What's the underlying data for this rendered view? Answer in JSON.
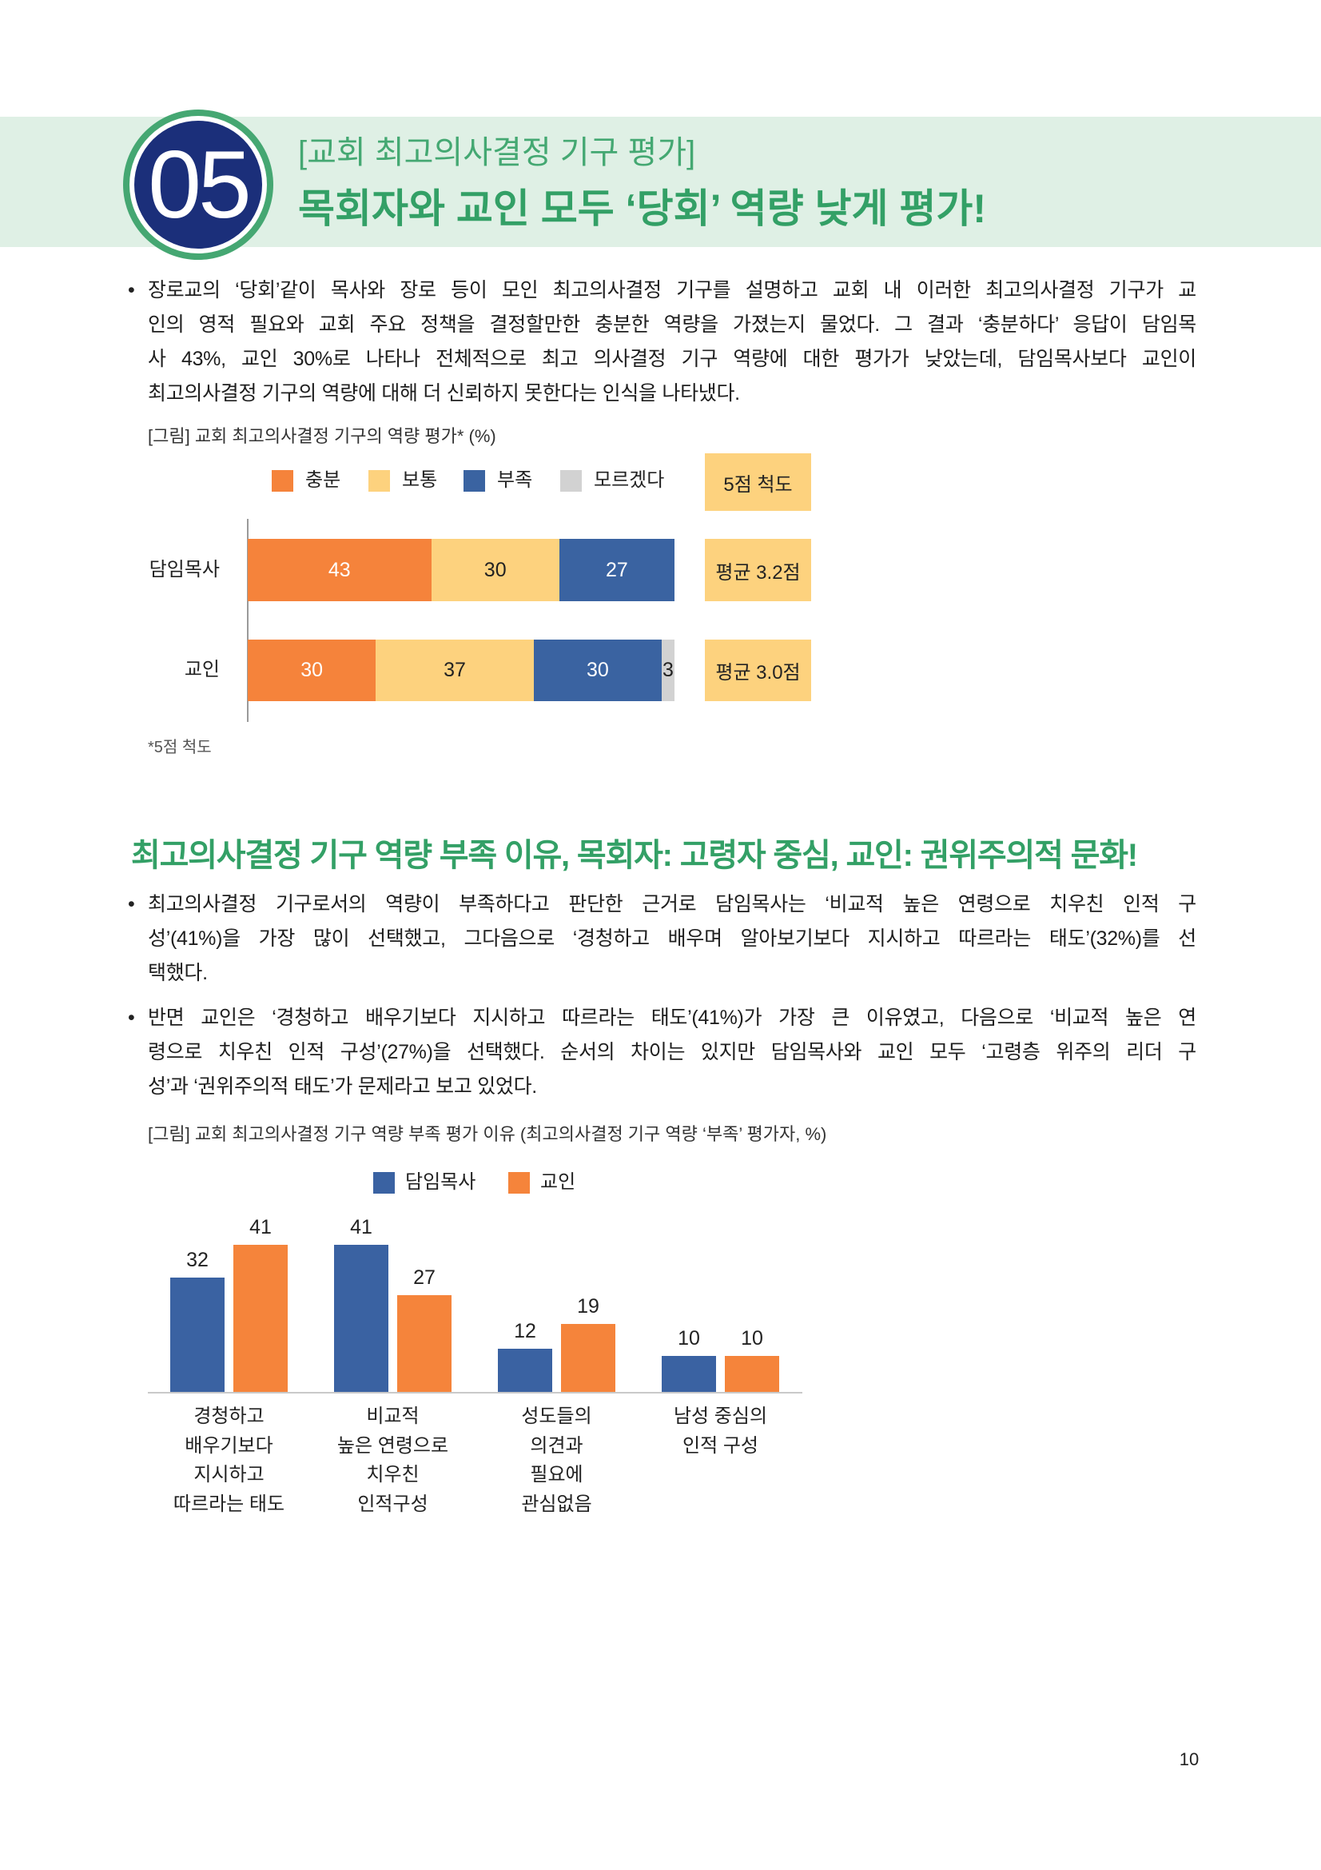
{
  "theme": {
    "band": "#dff0e5",
    "green": "#33a066",
    "green_light": "#44a872",
    "ring": "#45a772",
    "navy": "#1b2f7a",
    "text": "#1e1e1e",
    "box": "#fdd27e"
  },
  "header": {
    "number": "05",
    "subtitle": "[교회 최고의사결정 기구 평가]",
    "title": "목회자와 교인 모두 ‘당회’ 역량 낮게 평가!"
  },
  "intro": {
    "bullet": "•",
    "lines": [
      "장로교의 ‘당회’같이 목사와 장로 등이 모인 최고의사결정 기구를 설명하고 교회 내 이러한 최고의사결정 기구가 교",
      "인의 영적 필요와 교회 주요 정책을 결정할만한 충분한 역량을 가졌는지 물었다. 그 결과 ‘충분하다’ 응답이 담임목",
      "사 43%, 교인 30%로 나타나 전체적으로 최고 의사결정 기구 역량에 대한 평가가 낮았는데, 담임목사보다 교인이",
      "최고의사결정 기구의 역량에 대해 더 신뢰하지 못한다는 인식을 나타냈다."
    ]
  },
  "figure1": {
    "caption": "[그림] 교회 최고의사결정 기구의 역량 평가* (%)",
    "footnote": "*5점 척도"
  },
  "section2": {
    "heading": "최고의사결정 기구 역량 부족 이유, 목회자: 고령자 중심, 교인: 권위주의적 문화!",
    "bullets": [
      {
        "bullet": "•",
        "lines": [
          "최고의사결정 기구로서의 역량이 부족하다고 판단한 근거로 담임목사는 ‘비교적 높은 연령으로 치우친 인적 구",
          "성’(41%)을 가장 많이 선택했고, 그다음으로 ‘경청하고 배우며 알아보기보다 지시하고 따르라는 태도’(32%)를 선",
          "택했다."
        ]
      },
      {
        "bullet": "•",
        "lines": [
          "반면 교인은 ‘경청하고 배우기보다 지시하고 따르라는 태도’(41%)가 가장 큰 이유였고, 다음으로 ‘비교적 높은 연",
          "령으로 치우친 인적 구성’(27%)을 선택했다. 순서의 차이는 있지만 담임목사와 교인 모두 ‘고령층 위주의 리더 구",
          "성’과 ‘권위주의적 태도’가 문제라고 보고 있었다."
        ]
      }
    ]
  },
  "figure2": {
    "caption": "[그림] 교회 최고의사결정 기구 역량 부족 평가 이유 (최고의사결정 기구 역량 ‘부족’ 평가자, %)"
  },
  "page_number": "10",
  "chart_data": [
    {
      "type": "bar",
      "orientation": "horizontal",
      "stacked": true,
      "categories": [
        "담임목사",
        "교인"
      ],
      "series": [
        {
          "name": "충분",
          "values": [
            43,
            30
          ],
          "color": "#f5833b",
          "label_color": "#ffffff"
        },
        {
          "name": "보통",
          "values": [
            30,
            37
          ],
          "color": "#fdd27e",
          "label_color": "#222222"
        },
        {
          "name": "부족",
          "values": [
            27,
            30
          ],
          "color": "#3a63a1",
          "label_color": "#ffffff"
        },
        {
          "name": "모르겠다",
          "values": [
            null,
            3
          ],
          "color": "#d2d2d2",
          "label_color": "#222222"
        }
      ],
      "xlim": [
        0,
        100
      ],
      "legend": "top",
      "scale_label": "5점 척도",
      "averages": [
        "평균 3.2점",
        "평균 3.0점"
      ]
    },
    {
      "type": "bar",
      "categories": [
        "경청하고\n배우기보다\n지시하고\n따르라는 태도",
        "비교적\n높은 연령으로\n치우친\n인적구성",
        "성도들의\n의견과\n필요에\n관심없음",
        "남성 중심의\n인적 구성"
      ],
      "series": [
        {
          "name": "담임목사",
          "values": [
            32,
            41,
            12,
            10
          ],
          "color": "#3a62a2"
        },
        {
          "name": "교인",
          "values": [
            41,
            27,
            19,
            10
          ],
          "color": "#f5843b"
        }
      ],
      "legend": "top"
    }
  ]
}
